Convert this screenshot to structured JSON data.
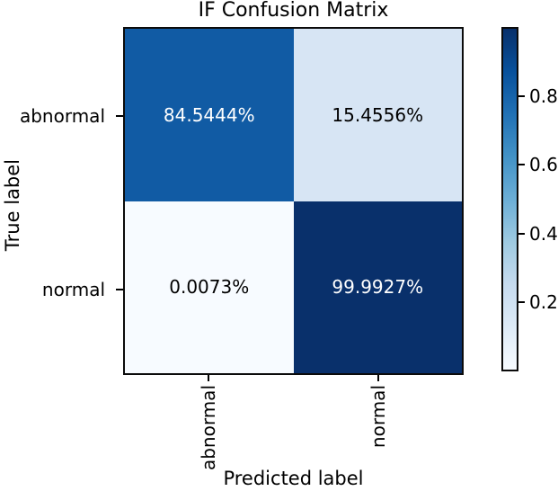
{
  "figure": {
    "background": "#ffffff",
    "text_color": "#000000"
  },
  "chart_data": {
    "type": "heatmap",
    "title": "IF Confusion Matrix",
    "xlabel": "Predicted label",
    "ylabel": "True label",
    "x_categories": [
      "abnormal",
      "normal"
    ],
    "y_categories": [
      "abnormal",
      "normal"
    ],
    "values_percent": [
      [
        84.5444,
        15.4556
      ],
      [
        0.0073,
        99.9927
      ]
    ],
    "cell_labels": [
      [
        "84.5444%",
        "15.4556%"
      ],
      [
        "0.0073%",
        "99.9927%"
      ]
    ],
    "cell_colors": [
      [
        "#115ba4",
        "#d7e5f4"
      ],
      [
        "#f7fbff",
        "#09306b"
      ]
    ],
    "cell_text_colors": [
      [
        "#ffffff",
        "#000000"
      ],
      [
        "#000000",
        "#ffffff"
      ]
    ],
    "grid": false,
    "colorbar": {
      "position": "right",
      "ticks": [
        {
          "label": "0.8",
          "value": 0.8
        },
        {
          "label": "0.6",
          "value": 0.6
        },
        {
          "label": "0.4",
          "value": 0.4
        },
        {
          "label": "0.2",
          "value": 0.2
        }
      ],
      "gradient_stops_bottom_to_top": [
        "#f7fbff",
        "#deebf7",
        "#c6dbef",
        "#9ecae1",
        "#6baed6",
        "#4292c6",
        "#2171b5",
        "#08519c",
        "#08306b"
      ]
    }
  }
}
